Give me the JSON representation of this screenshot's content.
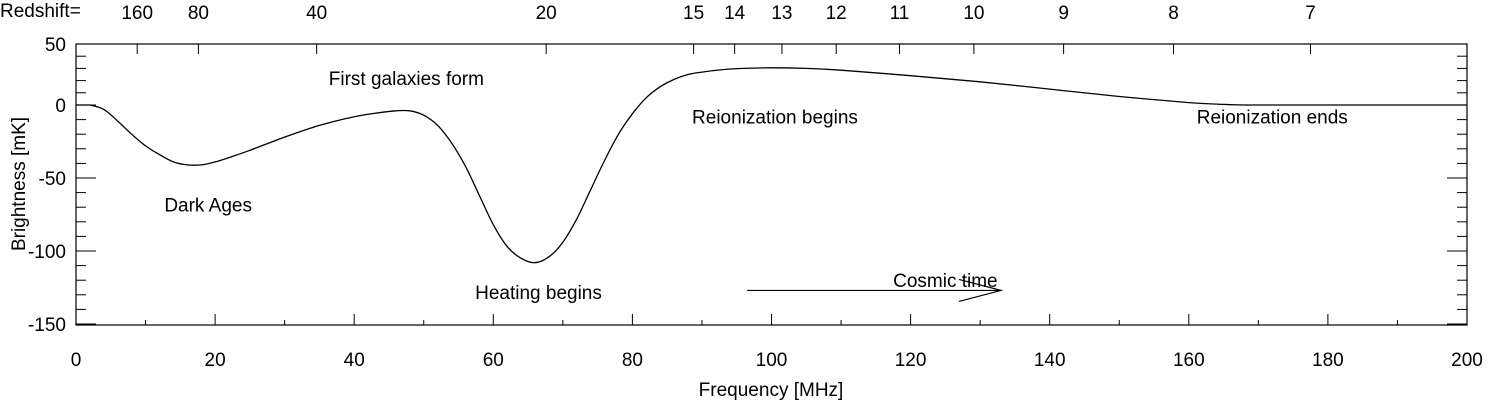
{
  "chart_data": {
    "type": "line",
    "title": "",
    "xlabel": "Frequency [MHz]",
    "ylabel": "Brightness [mK]",
    "xlim": [
      0,
      200
    ],
    "ylim": [
      -155,
      52
    ],
    "x_ticks": [
      0,
      20,
      40,
      60,
      80,
      100,
      120,
      140,
      160,
      180,
      200
    ],
    "y_ticks": [
      50,
      0,
      -50,
      -100,
      -150
    ],
    "top_axis": {
      "label": "Redshift=",
      "ticks": [
        {
          "label": "160",
          "frequency": 8.8
        },
        {
          "label": "80",
          "frequency": 17.6
        },
        {
          "label": "40",
          "frequency": 34.6
        },
        {
          "label": "20",
          "frequency": 67.6
        },
        {
          "label": "15",
          "frequency": 88.8
        },
        {
          "label": "14",
          "frequency": 94.7
        },
        {
          "label": "13",
          "frequency": 101.5
        },
        {
          "label": "12",
          "frequency": 109.3
        },
        {
          "label": "11",
          "frequency": 118.4
        },
        {
          "label": "10",
          "frequency": 129.1
        },
        {
          "label": "9",
          "frequency": 142.0
        },
        {
          "label": "8",
          "frequency": 157.8
        },
        {
          "label": "7",
          "frequency": 177.5
        }
      ]
    },
    "grid": false,
    "series": [
      {
        "x": [
          2,
          4,
          6,
          8,
          10,
          12,
          14,
          16,
          18,
          20,
          22,
          25,
          30,
          35,
          40,
          44,
          46,
          48,
          50,
          52,
          54,
          56,
          58,
          60,
          62,
          64,
          66,
          68,
          70,
          72,
          74,
          76,
          78,
          80,
          82,
          84,
          86,
          88,
          90,
          93,
          96,
          100,
          105,
          110,
          120,
          130,
          140,
          150,
          160,
          165,
          168,
          170,
          180,
          190,
          200
        ],
        "y": [
          0,
          -3,
          -11,
          -20,
          -28,
          -34,
          -39,
          -41,
          -41,
          -39,
          -36,
          -31,
          -22,
          -14,
          -8,
          -5,
          -4,
          -4,
          -7,
          -14,
          -26,
          -42,
          -62,
          -82,
          -97,
          -105,
          -108,
          -104,
          -94,
          -78,
          -58,
          -38,
          -20,
          -6,
          6,
          15,
          21,
          25,
          27,
          29,
          30,
          30.5,
          30,
          28.5,
          24,
          19,
          13,
          7,
          2,
          0.5,
          0,
          0,
          0,
          0,
          0
        ]
      }
    ],
    "annotations": [
      {
        "text": "First galaxies form",
        "x": 47.5,
        "y": 22
      },
      {
        "text": "Dark Ages",
        "x": 19,
        "y": -68
      },
      {
        "text": "Heating begins",
        "x": 66.5,
        "y": -128
      },
      {
        "text": "Reionization begins",
        "x": 100.5,
        "y": -8
      },
      {
        "text": "Reionization ends",
        "x": 172,
        "y": -8
      },
      {
        "text": "Cosmic time",
        "x": 125,
        "y": -120
      }
    ],
    "arrow": {
      "from_x": 96.5,
      "to_x": 133,
      "y": -127
    }
  }
}
